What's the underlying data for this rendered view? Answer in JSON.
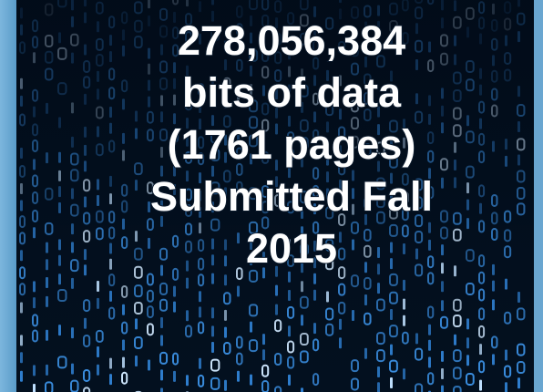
{
  "headline": {
    "lines": [
      "278,056,384",
      "bits of data",
      "(1761 pages)",
      "Submitted Fall",
      "2015"
    ]
  }
}
